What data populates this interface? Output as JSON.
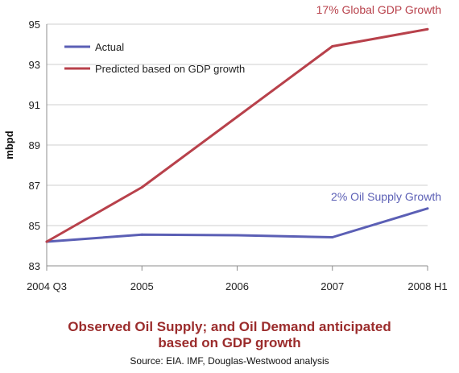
{
  "chart_data": {
    "type": "line",
    "x": [
      "2004 Q3",
      "2005",
      "2006",
      "2007",
      "2008 H1"
    ],
    "series": [
      {
        "name": "Actual",
        "values": [
          84.2,
          84.55,
          84.52,
          84.42,
          85.85
        ]
      },
      {
        "name": "Predicted based on GDP growth",
        "values": [
          84.2,
          86.9,
          90.4,
          93.9,
          94.75
        ]
      }
    ],
    "xlabel": "",
    "ylabel": "mbpd",
    "ylim": [
      83,
      95
    ],
    "yticks": [
      83,
      85,
      87,
      89,
      91,
      93,
      95
    ],
    "grid": "horizontal",
    "legend": "top-left",
    "annotations": [
      "17% Global GDP Growth",
      "2% Oil Supply  Growth"
    ]
  },
  "colors": {
    "actual": "#5b5fb5",
    "predicted": "#b8414b",
    "grid": "#cfcfcf"
  },
  "caption": {
    "title_line1": "Observed Oil Supply; and Oil Demand anticipated",
    "title_line2": "based on GDP growth",
    "source": "Source: EIA. IMF, Douglas-Westwood analysis"
  }
}
